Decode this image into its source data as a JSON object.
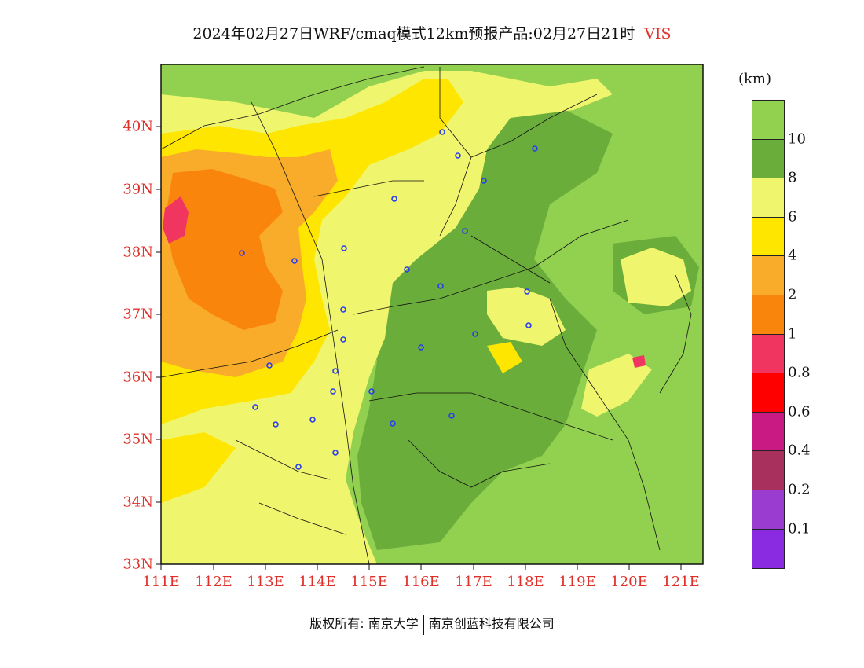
{
  "title": {
    "text": "2024年02月27日WRF/cmaq模式12km预报产品:02月27日21时",
    "variable": "VIS"
  },
  "axes": {
    "lat_labels": [
      "40N",
      "39N",
      "38N",
      "37N",
      "36N",
      "35N",
      "34N",
      "33N"
    ],
    "lon_labels": [
      "111E",
      "112E",
      "113E",
      "114E",
      "115E",
      "116E",
      "117E",
      "118E",
      "119E",
      "120E",
      "121E"
    ]
  },
  "legend": {
    "unit": "(km)",
    "labels": [
      "10",
      "8",
      "6",
      "4",
      "2",
      "1",
      "0.8",
      "0.6",
      "0.4",
      "0.2",
      "0.1"
    ],
    "colors": [
      "#92d050",
      "#6aad3a",
      "#f0f56e",
      "#ffe600",
      "#f9ac2a",
      "#f9850d",
      "#f03660",
      "#ff0000",
      "#c81a82",
      "#a8305c",
      "#9a3ccf",
      "#8a2be2"
    ]
  },
  "footer": {
    "left": "版权所有: 南京大学",
    "right": "南京创蓝科技有限公司"
  }
}
